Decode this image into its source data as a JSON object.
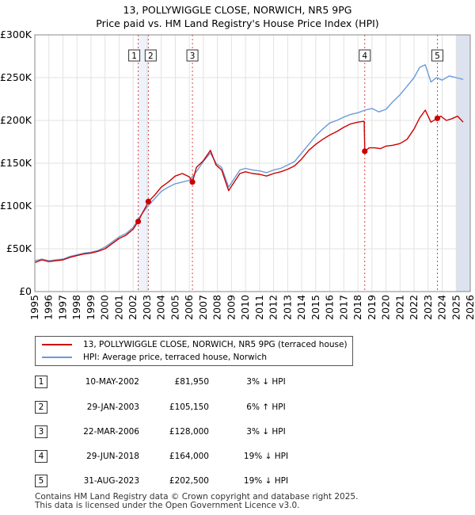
{
  "title": {
    "line1": "13, POLLYWIGGLE CLOSE, NORWICH, NR5 9PG",
    "line2": "Price paid vs. HM Land Registry's House Price Index (HPI)"
  },
  "colors": {
    "property": "#cc0000",
    "hpi": "#6a9bd8",
    "marker_line": "#d44444",
    "highlight": "#eef2fb",
    "future": "#dde3ee",
    "grid": "#e2e2e2"
  },
  "legend": {
    "property_label": "13, POLLYWIGGLE CLOSE, NORWICH, NR5 9PG (terraced house)",
    "hpi_label": "HPI: Average price, terraced house, Norwich"
  },
  "chart_data": {
    "type": "line",
    "title": "Price paid vs. HM Land Registry's House Price Index (HPI)",
    "xlabel": "",
    "ylabel": "",
    "xlim": [
      1995,
      2026
    ],
    "ylim": [
      0,
      300000
    ],
    "x_ticks": [
      1995,
      1996,
      1997,
      1998,
      1999,
      2000,
      2001,
      2002,
      2003,
      2004,
      2005,
      2006,
      2007,
      2008,
      2009,
      2010,
      2011,
      2012,
      2013,
      2014,
      2015,
      2016,
      2017,
      2018,
      2019,
      2020,
      2021,
      2022,
      2023,
      2024,
      2025,
      2026
    ],
    "y_ticks": [
      {
        "value": 0,
        "label": "£0"
      },
      {
        "value": 50000,
        "label": "£50K"
      },
      {
        "value": 100000,
        "label": "£100K"
      },
      {
        "value": 150000,
        "label": "£150K"
      },
      {
        "value": 200000,
        "label": "£200K"
      },
      {
        "value": 250000,
        "label": "£250K"
      },
      {
        "value": 300000,
        "label": "£300K"
      }
    ],
    "grid": true,
    "shaded_future_from": 2025.0,
    "series": [
      {
        "name": "13, POLLYWIGGLE CLOSE, NORWICH, NR5 9PG (terraced house)",
        "color": "#cc0000",
        "x": [
          1995.0,
          1995.5,
          1996.0,
          1996.5,
          1997.0,
          1997.5,
          1998.0,
          1998.5,
          1999.0,
          1999.5,
          2000.0,
          2000.5,
          2001.0,
          2001.5,
          2002.0,
          2002.36,
          2002.6,
          2002.9,
          2003.08,
          2003.5,
          2004.0,
          2004.5,
          2005.0,
          2005.5,
          2006.0,
          2006.22,
          2006.5,
          2007.0,
          2007.5,
          2007.9,
          2008.3,
          2008.8,
          2009.2,
          2009.6,
          2010.0,
          2010.5,
          2011.0,
          2011.5,
          2012.0,
          2012.5,
          2013.0,
          2013.5,
          2014.0,
          2014.5,
          2015.0,
          2015.5,
          2016.0,
          2016.5,
          2017.0,
          2017.5,
          2018.0,
          2018.45,
          2018.49,
          2018.8,
          2019.2,
          2019.6,
          2020.0,
          2020.5,
          2021.0,
          2021.5,
          2022.0,
          2022.4,
          2022.8,
          2023.2,
          2023.66,
          2023.9,
          2024.3,
          2024.7,
          2025.1,
          2025.5
        ],
        "values": [
          34000,
          37000,
          35000,
          36000,
          37000,
          40000,
          42000,
          44000,
          45000,
          47000,
          50000,
          56000,
          62000,
          66000,
          73000,
          81950,
          90000,
          99000,
          105150,
          112000,
          122000,
          128000,
          135000,
          138000,
          134000,
          128000,
          145000,
          153000,
          165000,
          148000,
          142000,
          118000,
          128000,
          138000,
          140000,
          138000,
          137000,
          135000,
          138000,
          140000,
          143000,
          147000,
          155000,
          165000,
          172000,
          178000,
          183000,
          187000,
          192000,
          196000,
          198000,
          199000,
          164000,
          168000,
          168000,
          167000,
          170000,
          171000,
          173000,
          178000,
          190000,
          203000,
          212000,
          198000,
          202500,
          205000,
          200000,
          202000,
          205000,
          198000
        ]
      },
      {
        "name": "HPI: Average price, terraced house, Norwich",
        "color": "#6a9bd8",
        "x": [
          1995.0,
          1995.5,
          1996.0,
          1996.5,
          1997.0,
          1997.5,
          1998.0,
          1998.5,
          1999.0,
          1999.5,
          2000.0,
          2000.5,
          2001.0,
          2001.5,
          2002.0,
          2002.5,
          2003.0,
          2003.5,
          2004.0,
          2004.5,
          2005.0,
          2005.5,
          2006.0,
          2006.5,
          2007.0,
          2007.5,
          2007.9,
          2008.3,
          2008.8,
          2009.2,
          2009.6,
          2010.0,
          2010.5,
          2011.0,
          2011.5,
          2012.0,
          2012.5,
          2013.0,
          2013.5,
          2014.0,
          2014.5,
          2015.0,
          2015.5,
          2016.0,
          2016.5,
          2017.0,
          2017.5,
          2018.0,
          2018.5,
          2019.0,
          2019.5,
          2020.0,
          2020.5,
          2021.0,
          2021.5,
          2022.0,
          2022.4,
          2022.8,
          2023.2,
          2023.6,
          2024.0,
          2024.5,
          2025.0,
          2025.5
        ],
        "values": [
          36000,
          38000,
          36000,
          37000,
          38000,
          41000,
          43000,
          45000,
          46000,
          48000,
          52000,
          58000,
          64000,
          68000,
          75000,
          88000,
          99000,
          108000,
          117000,
          122000,
          126000,
          128000,
          130000,
          140000,
          152000,
          162000,
          150000,
          145000,
          122000,
          132000,
          142000,
          144000,
          142000,
          141000,
          139000,
          142000,
          144000,
          148000,
          152000,
          162000,
          172000,
          182000,
          190000,
          197000,
          200000,
          204000,
          207000,
          209000,
          212000,
          214000,
          210000,
          213000,
          222000,
          230000,
          240000,
          250000,
          262000,
          265000,
          245000,
          250000,
          247000,
          252000,
          250000,
          248000
        ]
      }
    ],
    "sales": [
      {
        "n": "1",
        "x": 2002.36,
        "price": 81950
      },
      {
        "n": "2",
        "x": 2003.08,
        "price": 105150
      },
      {
        "n": "3",
        "x": 2006.22,
        "price": 128000
      },
      {
        "n": "4",
        "x": 2018.49,
        "price": 164000
      },
      {
        "n": "5",
        "x": 2023.66,
        "price": 202500
      }
    ]
  },
  "sales_table": [
    {
      "n": "1",
      "date": "10-MAY-2002",
      "price": "£81,950",
      "hpi": "3% ↓ HPI"
    },
    {
      "n": "2",
      "date": "29-JAN-2003",
      "price": "£105,150",
      "hpi": "6% ↑ HPI"
    },
    {
      "n": "3",
      "date": "22-MAR-2006",
      "price": "£128,000",
      "hpi": "3% ↓ HPI"
    },
    {
      "n": "4",
      "date": "29-JUN-2018",
      "price": "£164,000",
      "hpi": "19% ↓ HPI"
    },
    {
      "n": "5",
      "date": "31-AUG-2023",
      "price": "£202,500",
      "hpi": "19% ↓ HPI"
    }
  ],
  "footer": {
    "line1": "Contains HM Land Registry data © Crown copyright and database right 2025.",
    "line2": "This data is licensed under the Open Government Licence v3.0."
  }
}
